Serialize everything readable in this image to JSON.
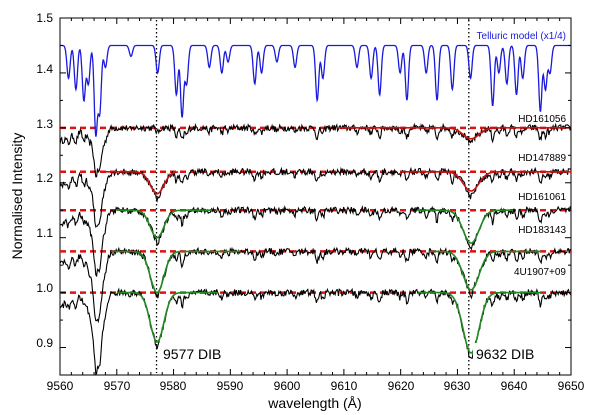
{
  "chart_data": {
    "type": "line",
    "title": "",
    "xlabel": "wavelength (Å)",
    "ylabel": "Normalised Intensity",
    "xlim": [
      9560,
      9650
    ],
    "ylim": [
      0.85,
      1.5
    ],
    "xticks": [
      9560,
      9570,
      9580,
      9590,
      9600,
      9610,
      9620,
      9630,
      9640,
      9650
    ],
    "xtick_labels": [
      "9560",
      "9570",
      "9580",
      "9590",
      "9600",
      "9610",
      "9620",
      "9630",
      "9640",
      "9650"
    ],
    "yticks": [
      0.9,
      1.0,
      1.1,
      1.2,
      1.3,
      1.4,
      1.5
    ],
    "ytick_labels": [
      "0.9",
      "1.0",
      "1.1",
      "1.2",
      "1.3",
      "1.4",
      "1.5"
    ],
    "dib_markers": [
      {
        "wavelength": 9577,
        "label": "9577 DIB"
      },
      {
        "wavelength": 9632,
        "label": "9632 DIB"
      }
    ],
    "telluric": {
      "name": "Telluric model (x1/4)",
      "color": "#1a1adc",
      "baseline": 1.45,
      "lines": [
        {
          "w": 9561.5,
          "d": 0.06
        },
        {
          "w": 9562.8,
          "d": 0.08
        },
        {
          "w": 9564.2,
          "d": 0.1
        },
        {
          "w": 9565.0,
          "d": 0.07
        },
        {
          "w": 9566.3,
          "d": 0.16
        },
        {
          "w": 9567.0,
          "d": 0.12
        },
        {
          "w": 9568.0,
          "d": 0.04
        },
        {
          "w": 9572.5,
          "d": 0.02
        },
        {
          "w": 9577.2,
          "d": 0.05
        },
        {
          "w": 9580.5,
          "d": 0.09
        },
        {
          "w": 9581.5,
          "d": 0.13
        },
        {
          "w": 9582.3,
          "d": 0.07
        },
        {
          "w": 9586.3,
          "d": 0.04
        },
        {
          "w": 9588.5,
          "d": 0.05
        },
        {
          "w": 9589.6,
          "d": 0.03
        },
        {
          "w": 9594.3,
          "d": 0.07
        },
        {
          "w": 9595.5,
          "d": 0.05
        },
        {
          "w": 9598.2,
          "d": 0.03
        },
        {
          "w": 9601.4,
          "d": 0.04
        },
        {
          "w": 9605.3,
          "d": 0.1
        },
        {
          "w": 9606.3,
          "d": 0.06
        },
        {
          "w": 9612.3,
          "d": 0.04
        },
        {
          "w": 9614.8,
          "d": 0.06
        },
        {
          "w": 9616.3,
          "d": 0.09
        },
        {
          "w": 9619.9,
          "d": 0.05
        },
        {
          "w": 9621.1,
          "d": 0.1
        },
        {
          "w": 9624.5,
          "d": 0.05
        },
        {
          "w": 9626.4,
          "d": 0.1
        },
        {
          "w": 9629.1,
          "d": 0.08
        },
        {
          "w": 9632.3,
          "d": 0.06
        },
        {
          "w": 9636.2,
          "d": 0.11
        },
        {
          "w": 9637.3,
          "d": 0.05
        },
        {
          "w": 9638.7,
          "d": 0.07
        },
        {
          "w": 9640.4,
          "d": 0.09
        },
        {
          "w": 9641.5,
          "d": 0.06
        },
        {
          "w": 9644.6,
          "d": 0.12
        },
        {
          "w": 9645.5,
          "d": 0.08
        },
        {
          "w": 9646.3,
          "d": 0.05
        }
      ]
    },
    "stars": [
      {
        "name": "HD161056",
        "continuum": 1.3,
        "dib9577": 0.0,
        "dib9632": 0.02,
        "fit_color": "#cc1111",
        "fit_ranges": [
          [
            9609,
            9650
          ]
        ]
      },
      {
        "name": "HD147889",
        "continuum": 1.22,
        "dib9577": 0.04,
        "dib9632": 0.035,
        "fit_color": "#cc1111",
        "fit_ranges": [
          [
            9568,
            9581
          ],
          [
            9620,
            9650
          ]
        ]
      },
      {
        "name": "HD161061",
        "continuum": 1.15,
        "dib9577": 0.05,
        "dib9632": 0.06,
        "fit_color": "#228822",
        "fit_ranges": [
          [
            9570,
            9587
          ],
          [
            9623,
            9640
          ]
        ]
      },
      {
        "name": "HD183143",
        "continuum": 1.075,
        "dib9577": 0.075,
        "dib9632": 0.07,
        "fit_color": "#228822",
        "fit_ranges": [
          [
            9569,
            9592
          ],
          [
            9625,
            9645
          ]
        ]
      },
      {
        "name": "4U1907+09",
        "continuum": 1.0,
        "dib9577": 0.09,
        "dib9632": 0.11,
        "fit_color": "#228822",
        "fit_ranges": [
          [
            9570,
            9588
          ],
          [
            9623,
            9645
          ]
        ]
      }
    ],
    "continuum_line_color": "#dd1111",
    "data_line_color": "#000000"
  }
}
